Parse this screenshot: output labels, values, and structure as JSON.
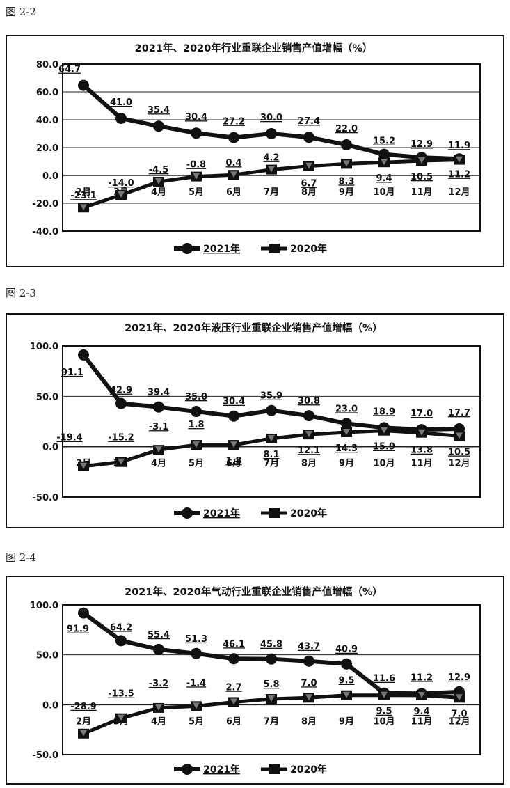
{
  "figures": [
    {
      "label": "图 2-2"
    },
    {
      "label": "图 2-3"
    },
    {
      "label": "图 2-4"
    }
  ],
  "chart_data": [
    {
      "type": "line",
      "title": "2021年、2020年行业重联企业销售产值增幅（%）",
      "categories": [
        "2月",
        "3月",
        "4月",
        "5月",
        "6月",
        "7月",
        "8月",
        "9月",
        "10月",
        "11月",
        "12月"
      ],
      "yticks": [
        "80.0",
        "60.0",
        "40.0",
        "20.0",
        "0.0",
        "-20.0",
        "-40.0"
      ],
      "ylim": [
        -40,
        80
      ],
      "grid": true,
      "legend": "bottom",
      "series": [
        {
          "name": "2021年",
          "values": [
            64.7,
            41.0,
            35.4,
            30.4,
            27.2,
            30.0,
            27.4,
            22.0,
            15.2,
            12.9,
            11.9
          ],
          "labels": [
            "64.7",
            "41.0",
            "35.4",
            "30.4",
            "27.2",
            "30.0",
            "27.4",
            "22.0",
            "15.2",
            "12.9",
            "11.9"
          ]
        },
        {
          "name": "2020年",
          "values": [
            -23.1,
            -14.0,
            -4.5,
            -0.8,
            0.4,
            4.2,
            6.7,
            8.3,
            9.4,
            10.5,
            11.2
          ],
          "labels": [
            "-23.1",
            "-14.0",
            "-4.5",
            "-0.8",
            "0.4",
            "4.2",
            "6.7",
            "8.3",
            "9.4",
            "10.5",
            "11.2"
          ]
        }
      ]
    },
    {
      "type": "line",
      "title": "2021年、2020年液压行业重联企业销售产值增幅（%）",
      "categories": [
        "2月",
        "3月",
        "4月",
        "5月",
        "6月",
        "7月",
        "8月",
        "9月",
        "10月",
        "11月",
        "12月"
      ],
      "yticks": [
        "100.0",
        "50.0",
        "0.0",
        "-50.0"
      ],
      "ylim": [
        -50,
        100
      ],
      "grid": true,
      "legend": "bottom",
      "series": [
        {
          "name": "2021年",
          "values": [
            91.1,
            42.9,
            39.4,
            35.0,
            30.4,
            35.9,
            30.8,
            23.0,
            18.9,
            17.0,
            17.7
          ],
          "labels": [
            "91.1",
            "42.9",
            "39.4",
            "35.0",
            "30.4",
            "35.9",
            "30.8",
            "23.0",
            "18.9",
            "17.0",
            "17.7"
          ]
        },
        {
          "name": "2020年",
          "values": [
            -19.4,
            -15.2,
            -3.1,
            1.8,
            1.8,
            8.1,
            12.1,
            14.3,
            15.9,
            13.8,
            10.5
          ],
          "labels": [
            "-19.4",
            "-15.2",
            "-3.1",
            "1.8",
            "1.8",
            "8.1",
            "12.1",
            "14.3",
            "15.9",
            "13.8",
            "10.5"
          ]
        }
      ]
    },
    {
      "type": "line",
      "title": "2021年、2020年气动行业重联企业销售产值增幅（%）",
      "categories": [
        "2月",
        "3月",
        "4月",
        "5月",
        "6月",
        "7月",
        "8月",
        "9月",
        "10月",
        "11月",
        "12月"
      ],
      "yticks": [
        "100.0",
        "50.0",
        "0.0",
        "-50.0"
      ],
      "ylim": [
        -50,
        100
      ],
      "grid": true,
      "legend": "bottom",
      "series": [
        {
          "name": "2021年",
          "values": [
            91.9,
            64.2,
            55.4,
            51.3,
            46.1,
            45.8,
            43.7,
            40.9,
            11.6,
            11.2,
            12.9
          ],
          "labels": [
            "91.9",
            "64.2",
            "55.4",
            "51.3",
            "46.1",
            "45.8",
            "43.7",
            "40.9",
            "11.6",
            "11.2",
            "12.9"
          ]
        },
        {
          "name": "2020年",
          "values": [
            -28.9,
            -13.5,
            -3.2,
            -1.4,
            2.7,
            5.8,
            7.0,
            9.5,
            9.5,
            9.4,
            7.0
          ],
          "labels": [
            "-28.9",
            "-13.5",
            "-3.2",
            "-1.4",
            "2.7",
            "5.8",
            "7.0",
            "9.5",
            "9.5",
            "9.4",
            "7.0"
          ]
        }
      ]
    }
  ]
}
